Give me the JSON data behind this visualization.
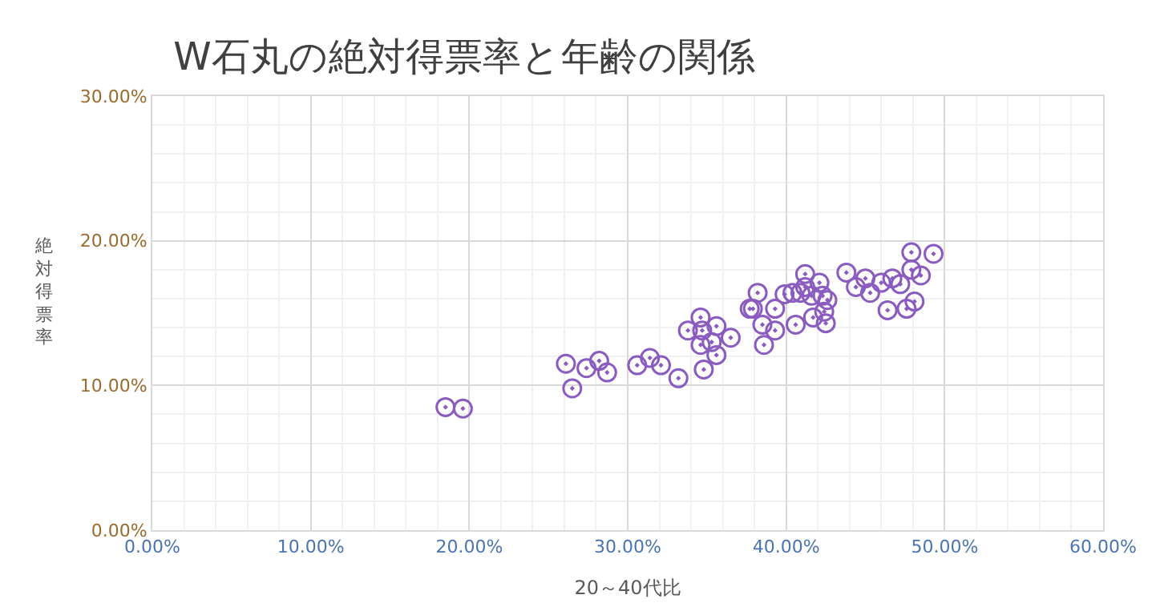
{
  "chart_data": {
    "type": "scatter",
    "title": "W石丸の絶対得票率と年齢の関係",
    "xlabel": "20～40代比",
    "ylabel": "絶対得票率",
    "xlim": [
      0,
      60
    ],
    "ylim": [
      0,
      30
    ],
    "xticks": [
      {
        "value": 0,
        "label": "0.00%"
      },
      {
        "value": 10,
        "label": "10.00%"
      },
      {
        "value": 20,
        "label": "20.00%"
      },
      {
        "value": 30,
        "label": "30.00%"
      },
      {
        "value": 40,
        "label": "40.00%"
      },
      {
        "value": 50,
        "label": "50.00%"
      },
      {
        "value": 60,
        "label": "60.00%"
      }
    ],
    "yticks": [
      {
        "value": 0,
        "label": "0.00%"
      },
      {
        "value": 10,
        "label": "10.00%"
      },
      {
        "value": 20,
        "label": "20.00%"
      },
      {
        "value": 30,
        "label": "30.00%"
      }
    ],
    "grid": true,
    "marker": "circle",
    "legend": false,
    "series": [
      {
        "color": "#8a5cc0",
        "x": [
          18.5,
          19.6,
          26.1,
          26.5,
          27.4,
          28.2,
          28.7,
          30.6,
          31.4,
          32.1,
          33.2,
          34.8,
          35.6,
          34.6,
          33.8,
          34.7,
          35.6,
          34.6,
          35.3,
          36.5,
          37.7,
          37.9,
          38.2,
          38.5,
          38.6,
          39.3,
          39.3,
          39.9,
          40.6,
          40.4,
          40.9,
          41.2,
          41.2,
          41.6,
          41.7,
          42.1,
          42.3,
          42.4,
          42.5,
          42.6,
          43.8,
          44.4,
          45.0,
          45.3,
          46.0,
          46.7,
          47.2,
          46.4,
          47.6,
          48.1,
          47.9,
          49.3,
          47.9,
          48.5
        ],
        "values": [
          8.5,
          8.4,
          11.5,
          9.8,
          11.2,
          11.7,
          10.9,
          11.4,
          11.9,
          11.4,
          10.5,
          11.1,
          12.1,
          14.7,
          13.8,
          13.8,
          14.1,
          12.8,
          13.0,
          13.3,
          15.3,
          15.3,
          16.4,
          14.2,
          12.8,
          15.3,
          13.8,
          16.3,
          14.2,
          16.4,
          16.4,
          17.7,
          16.8,
          16.2,
          14.7,
          17.1,
          16.2,
          15.1,
          14.3,
          15.9,
          17.8,
          16.8,
          17.4,
          16.4,
          17.1,
          17.4,
          17.0,
          15.2,
          15.3,
          15.8,
          19.2,
          19.1,
          18.0,
          17.6
        ]
      }
    ]
  }
}
